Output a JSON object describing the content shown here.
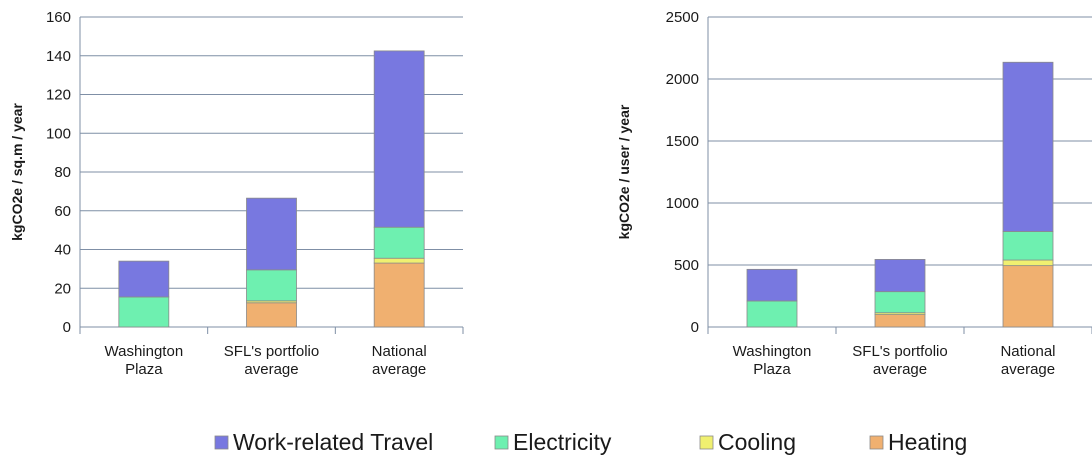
{
  "legend": [
    {
      "name": "Work-related Travel",
      "color": "#7878e0"
    },
    {
      "name": "Electricity",
      "color": "#6ef0b0"
    },
    {
      "name": "Cooling",
      "color": "#f0f070"
    },
    {
      "name": "Heating",
      "color": "#f0b070"
    }
  ],
  "chart_data": [
    {
      "type": "bar",
      "stacked": true,
      "ylabel": "kgCO2e / sq.m / year",
      "ylim": [
        0,
        160
      ],
      "yticks": [
        0,
        20,
        40,
        60,
        80,
        100,
        120,
        140,
        160
      ],
      "categories": [
        [
          "Washington",
          "Plaza"
        ],
        [
          "SFL's portfolio",
          "average"
        ],
        [
          "National",
          "average"
        ]
      ],
      "series": [
        {
          "name": "Heating",
          "values": [
            0,
            12.5,
            33
          ]
        },
        {
          "name": "Cooling",
          "values": [
            0,
            1,
            2.5
          ]
        },
        {
          "name": "Electricity",
          "values": [
            15.5,
            16,
            16
          ]
        },
        {
          "name": "Work-related Travel",
          "values": [
            18.5,
            37,
            91
          ]
        }
      ]
    },
    {
      "type": "bar",
      "stacked": true,
      "ylabel": "kgCO2e / user / year",
      "ylim": [
        0,
        2500
      ],
      "yticks": [
        0,
        500,
        1000,
        1500,
        2000,
        2500
      ],
      "categories": [
        [
          "Washington",
          "Plaza"
        ],
        [
          "SFL's portfolio",
          "average"
        ],
        [
          "National",
          "average"
        ]
      ],
      "series": [
        {
          "name": "Heating",
          "values": [
            0,
            100,
            495
          ]
        },
        {
          "name": "Cooling",
          "values": [
            0,
            15,
            45
          ]
        },
        {
          "name": "Electricity",
          "values": [
            210,
            170,
            230
          ]
        },
        {
          "name": "Work-related Travel",
          "values": [
            255,
            260,
            1365
          ]
        }
      ]
    }
  ]
}
